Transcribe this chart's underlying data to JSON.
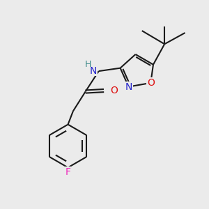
{
  "bg_color": "#ebebeb",
  "bond_color": "#1a1a1a",
  "N_color": "#2222cc",
  "O_color": "#dd1111",
  "F_color": "#ee22bb",
  "H_color": "#3a8888",
  "line_width": 1.5,
  "font_size": 10,
  "small_font_size": 8.5,
  "fig_width": 3.0,
  "fig_height": 3.0,
  "dpi": 100,
  "xlim": [
    0,
    10
  ],
  "ylim": [
    0,
    10
  ]
}
